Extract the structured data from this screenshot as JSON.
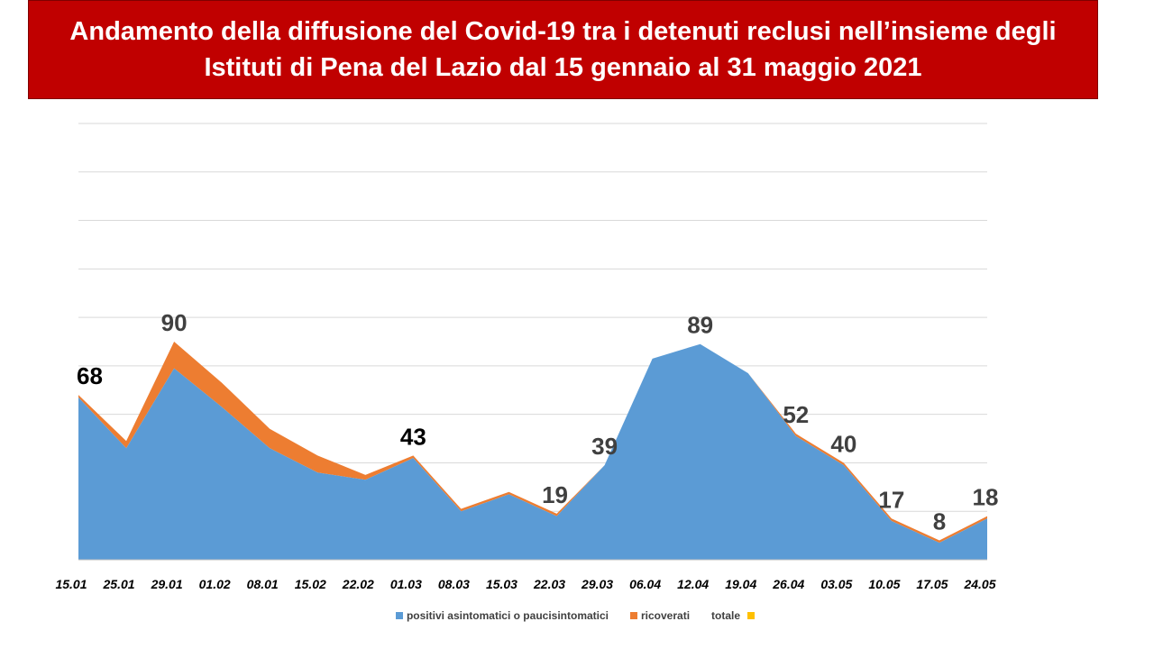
{
  "title": "Andamento della diffusione del Covid-19 tra i detenuti reclusi nell’insieme degli Istituti di Pena del Lazio dal 15 gennaio al 31 maggio 2021",
  "chart_data": {
    "type": "area",
    "title": "Andamento della diffusione del Covid-19 tra i detenuti reclusi nell’insieme degli Istituti di Pena del Lazio dal 15 gennaio al 31 maggio 2021",
    "categories": [
      "15.01",
      "25.01",
      "29.01",
      "01.02",
      "08.01",
      "15.02",
      "22.02",
      "01.03",
      "08.03",
      "15.03",
      "22.03",
      "29.03",
      "06.04",
      "12.04",
      "19.04",
      "26.04",
      "03.05",
      "10.05",
      "17.05",
      "24.05"
    ],
    "series": [
      {
        "name": "positivi asintomatici o paucisintomatici",
        "color": "#5b9bd5",
        "values": [
          67,
          46,
          79,
          63,
          46,
          36,
          33,
          42,
          20,
          27,
          18,
          39,
          83,
          89,
          77,
          51,
          39,
          16,
          7,
          17
        ]
      },
      {
        "name": "ricoverati",
        "color": "#ed7d31",
        "values": [
          1,
          3,
          11,
          10,
          8,
          7,
          2,
          1,
          1,
          1,
          1,
          0,
          0,
          0,
          0,
          1,
          1,
          1,
          1,
          1
        ]
      },
      {
        "name": "totale",
        "color": "#ffc000",
        "values": [
          68,
          49,
          90,
          73,
          54,
          43,
          35,
          43,
          21,
          28,
          19,
          39,
          83,
          89,
          77,
          52,
          40,
          17,
          8,
          18
        ]
      }
    ],
    "data_labels": [
      {
        "index": 0,
        "text": "68",
        "color": "#000000"
      },
      {
        "index": 2,
        "text": "90",
        "color": "#404040"
      },
      {
        "index": 7,
        "text": "43",
        "color": "#000000"
      },
      {
        "index": 10,
        "text": "19",
        "color": "#404040"
      },
      {
        "index": 11,
        "text": "39",
        "color": "#404040"
      },
      {
        "index": 13,
        "text": "89",
        "color": "#404040"
      },
      {
        "index": 15,
        "text": "52",
        "color": "#404040"
      },
      {
        "index": 16,
        "text": "40",
        "color": "#404040"
      },
      {
        "index": 17,
        "text": "17",
        "color": "#404040"
      },
      {
        "index": 18,
        "text": "8",
        "color": "#404040"
      },
      {
        "index": 19,
        "text": "18",
        "color": "#404040"
      }
    ],
    "ylim": [
      0,
      180
    ],
    "grid": true,
    "legend_position": "bottom"
  }
}
